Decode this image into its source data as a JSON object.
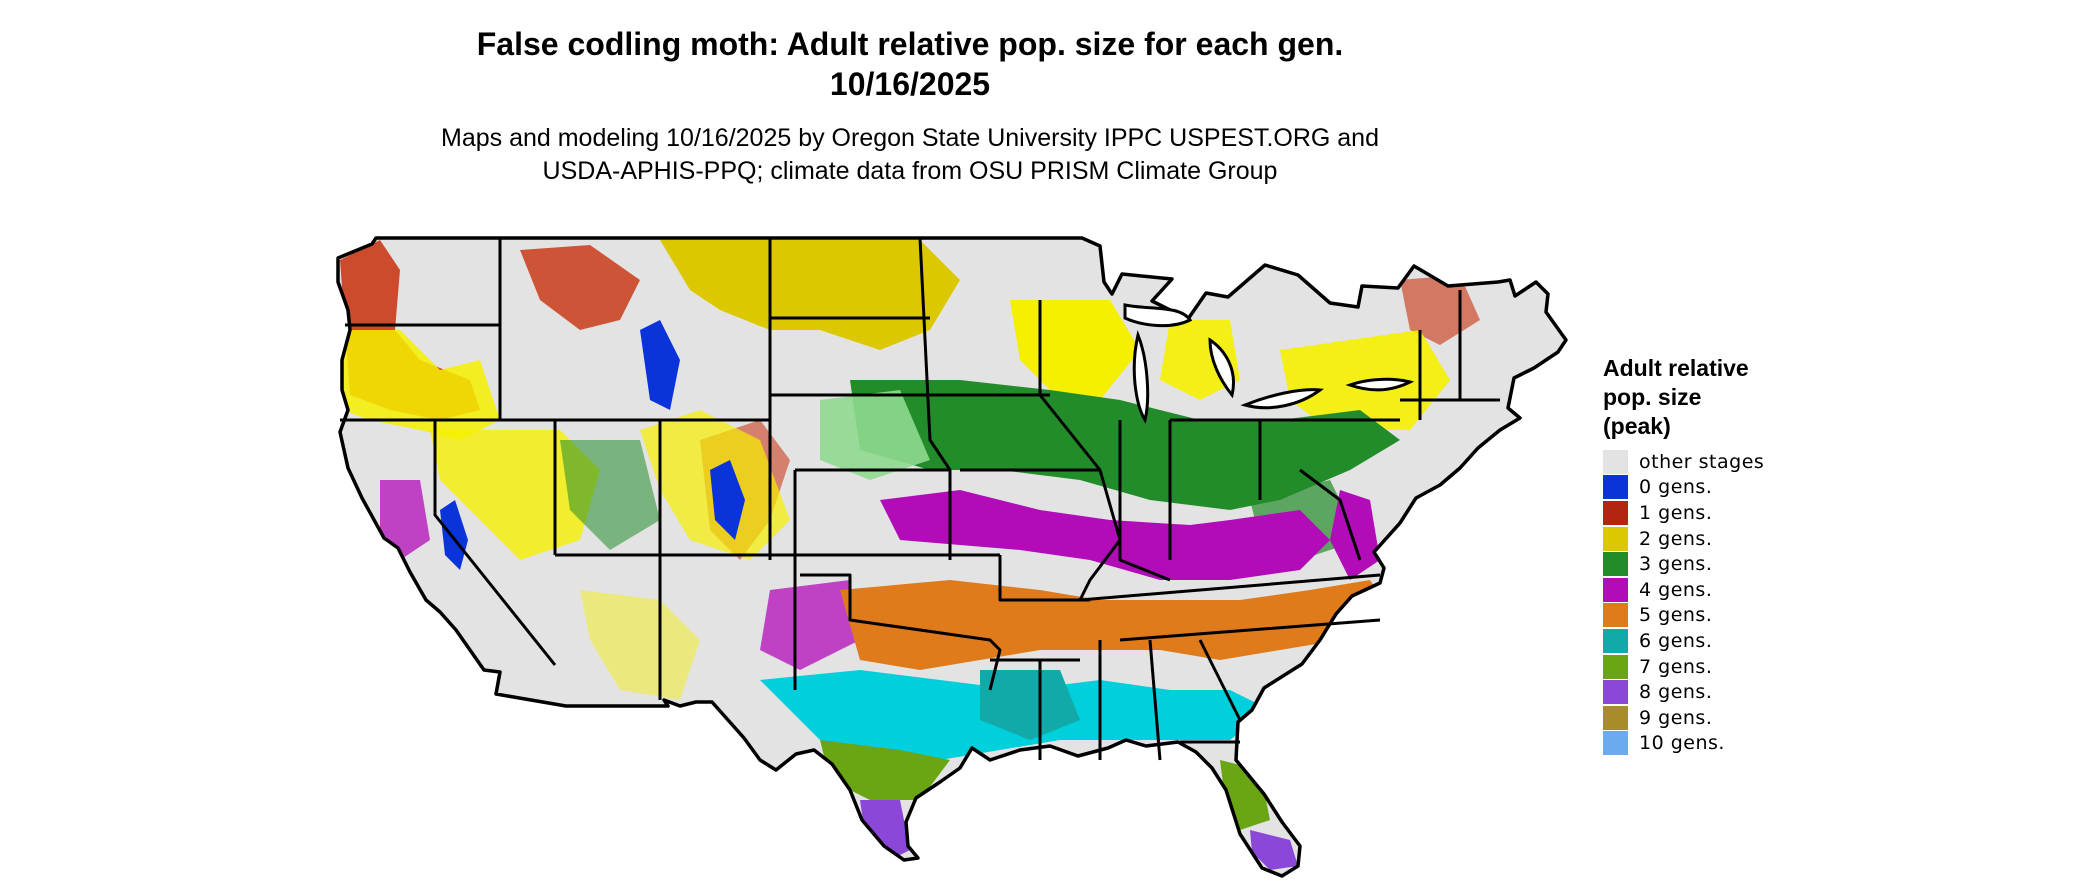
{
  "title_line1": "False codling moth: Adult relative pop. size for each gen.",
  "title_line2": "10/16/2025",
  "subtitle_line1": "Maps and modeling 10/16/2025 by Oregon State University IPPC USPEST.ORG and",
  "subtitle_line2": "USDA-APHIS-PPQ; climate data from OSU PRISM Climate Group",
  "legend": {
    "title_lines": [
      "Adult relative",
      "pop. size",
      "(peak)"
    ],
    "items": [
      {
        "label": "other stages",
        "color": "#e3e3e3"
      },
      {
        "label": "0 gens.",
        "color": "#0a34d9"
      },
      {
        "label": "1 gens.",
        "color": "#b2260f"
      },
      {
        "label": "2 gens.",
        "color": "#dcc800"
      },
      {
        "label": "3 gens.",
        "color": "#238c2a"
      },
      {
        "label": "4 gens.",
        "color": "#b20cb8"
      },
      {
        "label": "5 gens.",
        "color": "#e07b1c"
      },
      {
        "label": "6 gens.",
        "color": "#12aaa9"
      },
      {
        "label": "7 gens.",
        "color": "#6aa514"
      },
      {
        "label": "8 gens.",
        "color": "#8a47d8"
      },
      {
        "label": "9 gens.",
        "color": "#a88c2a"
      },
      {
        "label": "10 gens.",
        "color": "#6baaf0"
      }
    ]
  },
  "map_colors": {
    "background": "#e3e3e3",
    "outline": "#000000",
    "bright_yellow": "#f5f000",
    "light_green": "#8fd98f",
    "cyan": "#00d0dc",
    "red": "#c8300c"
  }
}
